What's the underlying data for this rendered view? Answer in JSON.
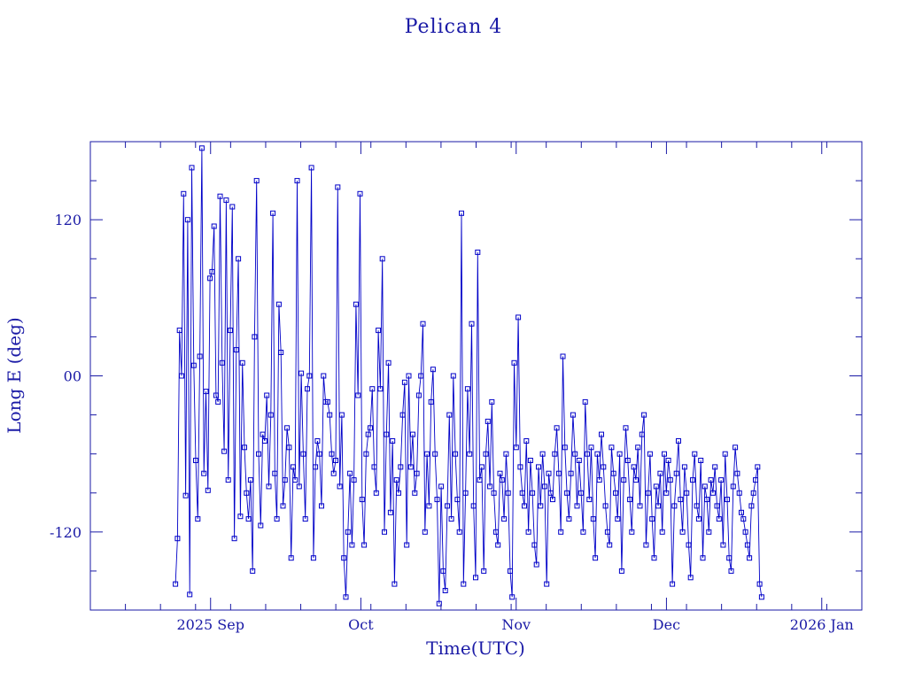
{
  "chart_data": {
    "type": "line",
    "title": "Pelican 4",
    "xlabel": "Time(UTC)",
    "ylabel": "Long E (deg)",
    "x_range": [
      "2025-08-08",
      "2026-01-09"
    ],
    "ylim": [
      -180,
      180
    ],
    "y_ticks": [
      {
        "value": 120,
        "label": "120"
      },
      {
        "value": 0,
        "label": "00"
      },
      {
        "value": -120,
        "label": "-120"
      }
    ],
    "x_ticks": [
      {
        "date": "2025-09-01",
        "label": "2025 Sep"
      },
      {
        "date": "2025-10-01",
        "label": "Oct"
      },
      {
        "date": "2025-11-01",
        "label": "Nov"
      },
      {
        "date": "2025-12-01",
        "label": "Dec"
      },
      {
        "date": "2026-01-01",
        "label": "2026 Jan"
      }
    ],
    "grid": false,
    "line_color": "#0000c8",
    "marker": "square",
    "series": [
      {
        "start_date": "2025-08-25",
        "end_date": "2025-12-20",
        "values": [
          -160,
          -125,
          35,
          0,
          140,
          -92,
          120,
          -168,
          160,
          8,
          -65,
          -110,
          15,
          175,
          -75,
          -12,
          -88,
          75,
          80,
          115,
          -15,
          -20,
          138,
          10,
          -58,
          135,
          -80,
          35,
          130,
          -125,
          20,
          90,
          -108,
          10,
          -55,
          -90,
          -110,
          -80,
          -150,
          30,
          150,
          -60,
          -115,
          -45,
          -50,
          -15,
          -85,
          -30,
          125,
          -75,
          -110,
          55,
          18,
          -100,
          -80,
          -40,
          -55,
          -140,
          -70,
          -80,
          150,
          -85,
          2,
          -60,
          -110,
          -10,
          0,
          160,
          -140,
          -70,
          -50,
          -60,
          -100,
          0,
          -20,
          -20,
          -30,
          -60,
          -75,
          -65,
          145,
          -85,
          -30,
          -140,
          -170,
          -120,
          -75,
          -130,
          -80,
          55,
          -15,
          140,
          -95,
          -130,
          -60,
          -45,
          -40,
          -10,
          -70,
          -90,
          35,
          -10,
          90,
          -120,
          -45,
          10,
          -105,
          -50,
          -160,
          -80,
          -90,
          -70,
          -30,
          -5,
          -130,
          0,
          -70,
          -45,
          -90,
          -75,
          -15,
          0,
          40,
          -120,
          -60,
          -100,
          -20,
          5,
          -60,
          -95,
          -175,
          -85,
          -150,
          -165,
          -100,
          -30,
          -110,
          0,
          -60,
          -95,
          -120,
          125,
          -160,
          -90,
          -10,
          -60,
          40,
          -100,
          -155,
          95,
          -80,
          -70,
          -150,
          -60,
          -35,
          -85,
          -20,
          -90,
          -120,
          -130,
          -75,
          -80,
          -110,
          -60,
          -90,
          -150,
          -170,
          10,
          -55,
          45,
          -70,
          -90,
          -100,
          -50,
          -120,
          -65,
          -90,
          -130,
          -145,
          -70,
          -100,
          -60,
          -85,
          -160,
          -75,
          -90,
          -95,
          -60,
          -40,
          -75,
          -120,
          15,
          -55,
          -90,
          -110,
          -75,
          -30,
          -60,
          -100,
          -65,
          -90,
          -120,
          -20,
          -60,
          -95,
          -55,
          -110,
          -140,
          -60,
          -80,
          -45,
          -70,
          -100,
          -120,
          -130,
          -55,
          -75,
          -90,
          -110,
          -60,
          -150,
          -80,
          -40,
          -65,
          -95,
          -120,
          -70,
          -80,
          -55,
          -100,
          -45,
          -30,
          -130,
          -90,
          -60,
          -110,
          -140,
          -85,
          -100,
          -75,
          -120,
          -60,
          -90,
          -65,
          -80,
          -160,
          -100,
          -75,
          -50,
          -95,
          -120,
          -70,
          -90,
          -130,
          -155,
          -80,
          -60,
          -100,
          -110,
          -65,
          -140,
          -85,
          -95,
          -120,
          -80,
          -90,
          -70,
          -100,
          -110,
          -80,
          -130,
          -60,
          -95,
          -140,
          -150,
          -85,
          -55,
          -75,
          -90,
          -105,
          -110,
          -120,
          -130,
          -140,
          -100,
          -90,
          -80,
          -70,
          -160,
          -170
        ]
      }
    ]
  }
}
